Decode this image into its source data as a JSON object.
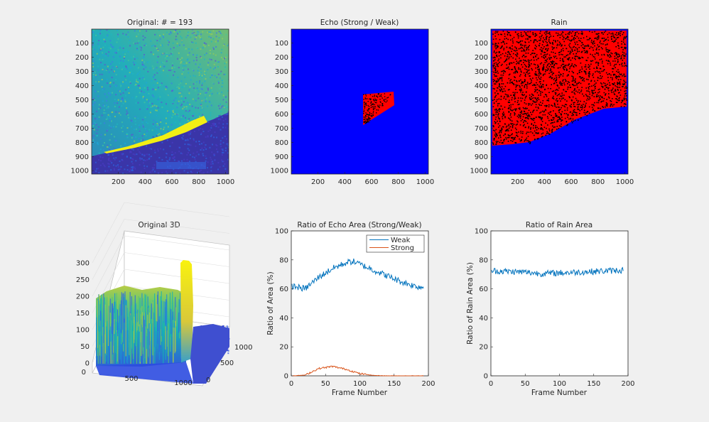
{
  "chart_data": [
    {
      "type": "heatmap",
      "title": "Original: # = 193",
      "colormap": "parula",
      "xticks": [
        200,
        400,
        600,
        800,
        1000
      ],
      "yticks": [
        100,
        200,
        300,
        400,
        500,
        600,
        700,
        800,
        900,
        1000
      ],
      "xlim": [
        1,
        1024
      ],
      "ylim": [
        1,
        1024
      ]
    },
    {
      "type": "heatmap",
      "title": "Echo (Strong / Weak)",
      "colors": {
        "background": "#0000ff",
        "echo": "#ff0000",
        "weak": "#000000"
      },
      "xticks": [
        200,
        400,
        600,
        800,
        1000
      ],
      "yticks": [
        100,
        200,
        300,
        400,
        500,
        600,
        700,
        800,
        900,
        1000
      ],
      "xlim": [
        1,
        1024
      ],
      "ylim": [
        1,
        1024
      ]
    },
    {
      "type": "heatmap",
      "title": "Rain",
      "colors": {
        "background": "#0000ff",
        "rain": "#ff0000",
        "gap": "#000000"
      },
      "xticks": [
        200,
        400,
        600,
        800,
        1000
      ],
      "yticks": [
        100,
        200,
        300,
        400,
        500,
        600,
        700,
        800,
        900,
        1000
      ],
      "xlim": [
        1,
        1024
      ],
      "ylim": [
        1,
        1024
      ]
    },
    {
      "type": "surface",
      "title": "Original 3D",
      "zticks": [
        0,
        50,
        100,
        150,
        200,
        250,
        300
      ],
      "xticks": [
        0,
        500,
        1000
      ],
      "yticks": [
        0,
        500,
        1000
      ],
      "zlim": [
        0,
        300
      ]
    },
    {
      "type": "line",
      "title": "Ratio of Echo Area (Strong/Weak)",
      "xlabel": "Frame Number",
      "ylabel": "Ratio of Area (%)",
      "xlim": [
        0,
        200
      ],
      "ylim": [
        0,
        100
      ],
      "xticks": [
        0,
        50,
        100,
        150,
        200
      ],
      "yticks": [
        0,
        20,
        40,
        60,
        80,
        100
      ],
      "legend": "top-right",
      "x": [
        1,
        20,
        40,
        60,
        80,
        90,
        100,
        120,
        140,
        160,
        180,
        193
      ],
      "series": [
        {
          "name": "Weak",
          "color": "#0072bd",
          "values": [
            62,
            60,
            68,
            74,
            78,
            79,
            77,
            73,
            69,
            65,
            62,
            61
          ]
        },
        {
          "name": "Strong",
          "color": "#d95319",
          "values": [
            0,
            0.5,
            5,
            6.5,
            4.5,
            3,
            1.5,
            0.3,
            0,
            0,
            0,
            0
          ]
        }
      ]
    },
    {
      "type": "line",
      "title": "Ratio of Rain Area",
      "xlabel": "Frame Number",
      "ylabel": "Ratio of Rain Area (%)",
      "xlim": [
        0,
        200
      ],
      "ylim": [
        0,
        100
      ],
      "xticks": [
        0,
        50,
        100,
        150,
        200
      ],
      "yticks": [
        0,
        20,
        40,
        60,
        80,
        100
      ],
      "x": [
        1,
        25,
        50,
        75,
        100,
        125,
        150,
        175,
        193
      ],
      "series": [
        {
          "color": "#0072bd",
          "values": [
            72.5,
            72,
            71.5,
            70.5,
            71,
            71.5,
            72,
            72.5,
            73
          ]
        }
      ]
    }
  ]
}
